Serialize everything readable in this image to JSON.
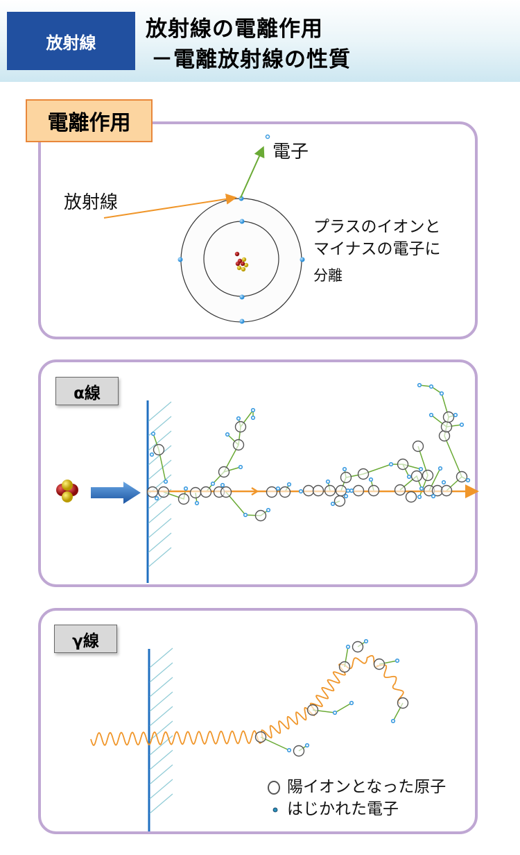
{
  "header": {
    "category": "放射線",
    "title_line1": "放射線の電離作用",
    "title_line2": "－電離放射線の性質",
    "category_color": "#2150a0"
  },
  "ionization": {
    "label": "電離作用",
    "radiation_label": "放射線",
    "electron_label": "電子",
    "description": [
      "プラスのイオンと",
      "マイナスの電子に",
      "分離"
    ]
  },
  "alpha": {
    "label": "α線"
  },
  "gamma": {
    "label": "γ線",
    "legend": [
      {
        "icon": "ion-atom-circle-icon",
        "label": "陽イオンとなった原子"
      },
      {
        "icon": "electron-dot-icon",
        "label": "はじかれた電子"
      }
    ]
  },
  "colors": {
    "panel_border": "#bfa7d3",
    "radiation": "#f0962a",
    "electron_track": "#6aaa35",
    "electron": "#3b9be0",
    "wall": "#1f6fc0",
    "hatch": "#8fcbd6"
  }
}
